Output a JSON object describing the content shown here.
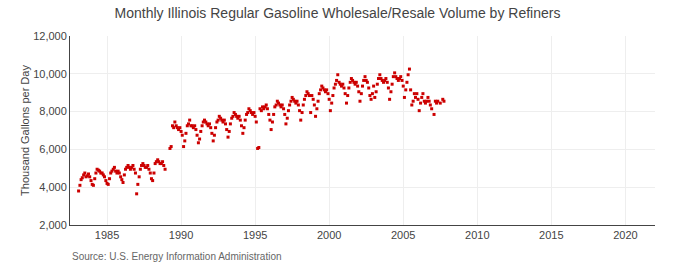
{
  "chart_data": {
    "type": "scatter",
    "title": "Monthly Illinois Regular Gasoline Wholesale/Resale Volume by Refiners",
    "ylabel": "Thousand Gallons per Day",
    "annotations": [
      "Source: U.S. Energy Information Administration"
    ],
    "color": "#cc0000",
    "marker": "square",
    "grid": true,
    "xlim": [
      1982.5,
      2022
    ],
    "ylim": [
      2000,
      12000
    ],
    "xticks": [
      1985,
      1990,
      1995,
      2000,
      2005,
      2010,
      2015,
      2020
    ],
    "yticks": [
      {
        "value": 2000,
        "label": "2,000"
      },
      {
        "value": 4000,
        "label": "4,000"
      },
      {
        "value": 6000,
        "label": "6,000"
      },
      {
        "value": 8000,
        "label": "8,000"
      },
      {
        "value": 10000,
        "label": "10,000"
      },
      {
        "value": 12000,
        "label": "12,000"
      }
    ],
    "x": [
      1983.08,
      1983.17,
      1983.25,
      1983.33,
      1983.42,
      1983.5,
      1983.58,
      1983.67,
      1983.75,
      1983.83,
      1983.92,
      1984.0,
      1984.08,
      1984.17,
      1984.25,
      1984.33,
      1984.42,
      1984.5,
      1984.58,
      1984.67,
      1984.75,
      1984.83,
      1984.92,
      1985.0,
      1985.08,
      1985.17,
      1985.25,
      1985.33,
      1985.42,
      1985.5,
      1985.58,
      1985.67,
      1985.75,
      1985.83,
      1985.92,
      1986.0,
      1986.08,
      1986.17,
      1986.25,
      1986.33,
      1986.42,
      1986.5,
      1986.58,
      1986.67,
      1986.75,
      1986.83,
      1986.92,
      1987.0,
      1987.08,
      1987.17,
      1987.25,
      1987.33,
      1987.42,
      1987.5,
      1987.58,
      1987.67,
      1987.75,
      1987.83,
      1987.92,
      1988.0,
      1988.08,
      1988.17,
      1988.25,
      1988.33,
      1988.42,
      1988.5,
      1988.58,
      1988.67,
      1988.75,
      1988.83,
      1988.92,
      1989.25,
      1989.33,
      1989.42,
      1989.5,
      1989.58,
      1989.67,
      1989.75,
      1989.83,
      1989.92,
      1990.0,
      1990.08,
      1990.17,
      1990.25,
      1990.33,
      1990.42,
      1990.5,
      1990.58,
      1990.67,
      1990.75,
      1990.83,
      1990.92,
      1991.0,
      1991.08,
      1991.17,
      1991.25,
      1991.33,
      1991.42,
      1991.5,
      1991.58,
      1991.67,
      1991.75,
      1991.83,
      1991.92,
      1992.0,
      1992.08,
      1992.17,
      1992.25,
      1992.33,
      1992.42,
      1992.5,
      1992.58,
      1992.67,
      1992.75,
      1992.83,
      1992.92,
      1993.0,
      1993.08,
      1993.17,
      1993.25,
      1993.33,
      1993.42,
      1993.5,
      1993.58,
      1993.67,
      1993.75,
      1993.83,
      1993.92,
      1994.0,
      1994.08,
      1994.17,
      1994.25,
      1994.33,
      1994.42,
      1994.5,
      1994.58,
      1994.67,
      1994.75,
      1994.83,
      1994.92,
      1995.0,
      1995.08,
      1995.17,
      1995.25,
      1995.33,
      1995.42,
      1995.5,
      1995.58,
      1995.67,
      1995.75,
      1995.83,
      1995.92,
      1996.0,
      1996.08,
      1996.17,
      1996.25,
      1996.33,
      1996.42,
      1996.5,
      1996.58,
      1996.67,
      1996.75,
      1996.83,
      1996.92,
      1997.0,
      1997.08,
      1997.17,
      1997.25,
      1997.33,
      1997.42,
      1997.5,
      1997.58,
      1997.67,
      1997.75,
      1997.83,
      1997.92,
      1998.0,
      1998.08,
      1998.17,
      1998.25,
      1998.33,
      1998.42,
      1998.5,
      1998.58,
      1998.67,
      1998.75,
      1998.83,
      1998.92,
      1999.0,
      1999.08,
      1999.17,
      1999.25,
      1999.33,
      1999.42,
      1999.5,
      1999.58,
      1999.67,
      1999.75,
      1999.83,
      1999.92,
      2000.0,
      2000.08,
      2000.17,
      2000.25,
      2000.33,
      2000.42,
      2000.5,
      2000.58,
      2000.67,
      2000.75,
      2000.83,
      2000.92,
      2001.0,
      2001.08,
      2001.17,
      2001.25,
      2001.33,
      2001.42,
      2001.5,
      2001.58,
      2001.67,
      2001.75,
      2001.83,
      2001.92,
      2002.0,
      2002.08,
      2002.17,
      2002.25,
      2002.33,
      2002.42,
      2002.5,
      2002.58,
      2002.67,
      2002.75,
      2002.83,
      2002.92,
      2003.0,
      2003.08,
      2003.17,
      2003.25,
      2003.33,
      2003.42,
      2003.5,
      2003.58,
      2003.67,
      2003.75,
      2003.83,
      2003.92,
      2004.0,
      2004.08,
      2004.17,
      2004.25,
      2004.33,
      2004.42,
      2004.5,
      2004.58,
      2004.67,
      2004.75,
      2004.83,
      2004.92,
      2005.0,
      2005.08,
      2005.17,
      2005.25,
      2005.33,
      2005.42,
      2005.5,
      2005.58,
      2005.67,
      2005.75,
      2005.83,
      2005.92,
      2006.0,
      2006.08,
      2006.17,
      2006.25,
      2006.33,
      2006.42,
      2006.5,
      2006.58,
      2006.67,
      2006.75,
      2006.83,
      2006.92,
      2007.08,
      2007.17,
      2007.25,
      2007.33,
      2007.5,
      2007.67,
      2007.75
    ],
    "values": [
      3800,
      4100,
      4400,
      4500,
      4650,
      4750,
      4550,
      4600,
      4700,
      4550,
      4350,
      4150,
      4100,
      4450,
      4750,
      4950,
      4900,
      4850,
      4750,
      4750,
      4650,
      4550,
      4350,
      4200,
      4150,
      4450,
      4750,
      4850,
      4950,
      5050,
      4850,
      4750,
      4850,
      4750,
      4550,
      4400,
      4250,
      4650,
      4950,
      5050,
      5150,
      5050,
      4950,
      5050,
      5150,
      4950,
      4750,
      3650,
      4150,
      4550,
      4950,
      5150,
      5250,
      5150,
      5050,
      5050,
      5150,
      4950,
      4750,
      4450,
      4350,
      4750,
      5250,
      5350,
      5450,
      5350,
      5250,
      5250,
      5350,
      5150,
      4950,
      6050,
      6150,
      7250,
      7150,
      7450,
      7250,
      7150,
      7050,
      7150,
      6950,
      6750,
      6150,
      6450,
      6850,
      7250,
      7350,
      7550,
      7250,
      7250,
      7150,
      7250,
      7050,
      6750,
      6350,
      6550,
      6950,
      7250,
      7450,
      7550,
      7450,
      7350,
      7250,
      7350,
      7150,
      6850,
      6450,
      6750,
      7150,
      7450,
      7550,
      7750,
      7650,
      7550,
      7450,
      7550,
      7350,
      7050,
      6650,
      6950,
      7350,
      7650,
      7750,
      7950,
      7850,
      7750,
      7650,
      7750,
      7550,
      7250,
      6850,
      7150,
      7550,
      7850,
      7950,
      8150,
      8050,
      7950,
      7850,
      7950,
      7750,
      7450,
      6050,
      6100,
      8150,
      8050,
      8250,
      8150,
      8250,
      8350,
      8150,
      7850,
      7550,
      7050,
      7450,
      7850,
      8250,
      8350,
      8550,
      8450,
      8350,
      8250,
      8350,
      8150,
      7850,
      7350,
      7650,
      8050,
      8350,
      8550,
      8750,
      8650,
      8550,
      8450,
      8550,
      8350,
      8050,
      7550,
      7950,
      8350,
      8650,
      8850,
      9050,
      8950,
      8850,
      7950,
      8850,
      8650,
      8350,
      7750,
      8150,
      8550,
      8950,
      9150,
      9350,
      9250,
      9150,
      9050,
      9150,
      8950,
      8650,
      8050,
      8450,
      8850,
      9250,
      9450,
      9650,
      9950,
      9550,
      9450,
      9350,
      9450,
      9250,
      8950,
      8450,
      8850,
      9250,
      9550,
      9750,
      9650,
      9550,
      9450,
      9550,
      9350,
      9050,
      8550,
      8950,
      9350,
      9650,
      9850,
      9650,
      9550,
      9250,
      8850,
      8650,
      8950,
      9350,
      8750,
      9050,
      9450,
      9750,
      9950,
      9750,
      9650,
      9550,
      9650,
      9750,
      9550,
      9250,
      8650,
      9050,
      9450,
      9850,
      10050,
      9850,
      9750,
      9650,
      9750,
      9850,
      9650,
      9350,
      8750,
      9150,
      9550,
      9950,
      10250,
      9150,
      8350,
      8550,
      8950,
      8750,
      8950,
      8650,
      8050,
      8450,
      8750,
      8950,
      8550,
      8450,
      8550,
      8750,
      8550,
      8350,
      8150,
      7850,
      8550,
      8450,
      8550,
      8450,
      8650,
      8550
    ]
  }
}
